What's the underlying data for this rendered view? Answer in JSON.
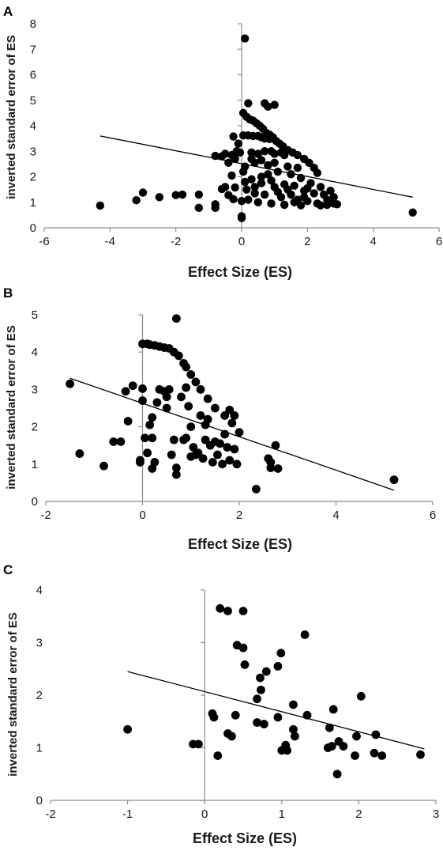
{
  "chart_data": [
    {
      "panel": "A",
      "type": "scatter",
      "xlabel": "Effect Size (ES)",
      "ylabel": "inverted standard error of ES",
      "xlim": [
        -6,
        6
      ],
      "ylim": [
        0,
        8
      ],
      "xticks": [
        -6,
        -4,
        -2,
        0,
        2,
        4,
        6
      ],
      "yticks": [
        0,
        1,
        2,
        3,
        4,
        5,
        6,
        7,
        8
      ],
      "grid": false,
      "trendline": {
        "x": [
          -4.3,
          5.2
        ],
        "y": [
          3.6,
          1.2
        ]
      },
      "points": [
        [
          -4.3,
          0.87
        ],
        [
          -3.2,
          1.08
        ],
        [
          -3.0,
          1.38
        ],
        [
          -2.5,
          1.2
        ],
        [
          -2.0,
          1.28
        ],
        [
          -1.8,
          1.3
        ],
        [
          -1.3,
          0.78
        ],
        [
          -1.3,
          1.3
        ],
        [
          -0.8,
          0.78
        ],
        [
          -0.8,
          0.92
        ],
        [
          -0.4,
          1.28
        ],
        [
          -0.25,
          1.12
        ],
        [
          0.0,
          0.38
        ],
        [
          0.0,
          0.45
        ],
        [
          -0.2,
          1.58
        ],
        [
          -0.5,
          1.6
        ],
        [
          -0.6,
          1.52
        ],
        [
          -0.3,
          2.05
        ],
        [
          -0.4,
          2.55
        ],
        [
          -0.2,
          2.7
        ],
        [
          0.1,
          7.42
        ],
        [
          0.2,
          4.88
        ],
        [
          0.7,
          4.88
        ],
        [
          0.8,
          4.75
        ],
        [
          1.0,
          4.82
        ],
        [
          0.05,
          4.5
        ],
        [
          0.15,
          4.35
        ],
        [
          0.25,
          4.25
        ],
        [
          0.35,
          4.2
        ],
        [
          0.45,
          4.1
        ],
        [
          0.55,
          4.0
        ],
        [
          0.65,
          3.88
        ],
        [
          0.75,
          3.72
        ],
        [
          0.85,
          3.65
        ],
        [
          0.95,
          3.55
        ],
        [
          1.05,
          3.4
        ],
        [
          1.15,
          3.3
        ],
        [
          1.25,
          3.2
        ],
        [
          1.4,
          3.05
        ],
        [
          1.55,
          2.95
        ],
        [
          1.7,
          2.85
        ],
        [
          1.9,
          2.7
        ],
        [
          2.05,
          2.55
        ],
        [
          2.2,
          2.35
        ],
        [
          -0.15,
          3.0
        ],
        [
          0.05,
          3.62
        ],
        [
          0.2,
          3.62
        ],
        [
          0.35,
          3.6
        ],
        [
          0.5,
          3.6
        ],
        [
          0.6,
          3.55
        ],
        [
          0.7,
          3.5
        ],
        [
          0.85,
          3.48
        ],
        [
          -0.25,
          3.58
        ],
        [
          -0.05,
          2.95
        ],
        [
          0.3,
          2.95
        ],
        [
          0.5,
          2.9
        ],
        [
          0.7,
          3.0
        ],
        [
          0.9,
          3.0
        ],
        [
          1.0,
          2.9
        ],
        [
          1.2,
          2.95
        ],
        [
          1.3,
          2.85
        ],
        [
          -0.1,
          3.3
        ],
        [
          -0.8,
          2.82
        ],
        [
          -0.5,
          2.9
        ],
        [
          -0.3,
          2.85
        ],
        [
          -0.6,
          2.8
        ],
        [
          0.1,
          2.4
        ],
        [
          0.4,
          2.55
        ],
        [
          0.8,
          2.45
        ],
        [
          1.1,
          2.2
        ],
        [
          1.5,
          2.1
        ],
        [
          1.8,
          1.95
        ],
        [
          2.1,
          1.75
        ],
        [
          2.4,
          1.6
        ],
        [
          0.05,
          2.2
        ],
        [
          0.3,
          1.9
        ],
        [
          0.6,
          1.75
        ],
        [
          1.0,
          1.6
        ],
        [
          1.4,
          1.5
        ],
        [
          1.9,
          1.45
        ],
        [
          2.2,
          1.35
        ],
        [
          2.5,
          1.3
        ],
        [
          2.7,
          1.45
        ],
        [
          2.8,
          1.2
        ],
        [
          0.15,
          1.5
        ],
        [
          0.4,
          1.35
        ],
        [
          0.7,
          1.3
        ],
        [
          1.2,
          1.2
        ],
        [
          1.7,
          1.1
        ],
        [
          2.0,
          1.05
        ],
        [
          2.3,
          0.95
        ],
        [
          2.6,
          0.9
        ],
        [
          2.8,
          0.95
        ],
        [
          2.9,
          0.92
        ],
        [
          0.2,
          1.1
        ],
        [
          0.5,
          1.0
        ],
        [
          0.9,
          0.95
        ],
        [
          1.3,
          0.9
        ],
        [
          1.6,
          1.0
        ],
        [
          1.8,
          0.88
        ],
        [
          2.4,
          0.88
        ],
        [
          0.6,
          2.0
        ],
        [
          0.9,
          1.85
        ],
        [
          1.3,
          1.7
        ],
        [
          1.6,
          1.65
        ],
        [
          2.0,
          1.55
        ],
        [
          0.3,
          2.7
        ],
        [
          0.6,
          2.65
        ],
        [
          1.0,
          2.55
        ],
        [
          1.4,
          2.4
        ],
        [
          1.7,
          2.35
        ],
        [
          2.3,
          2.15
        ],
        [
          0.1,
          1.8
        ],
        [
          0.8,
          2.1
        ],
        [
          1.5,
          1.3
        ],
        [
          1.1,
          1.4
        ],
        [
          0.4,
          1.6
        ],
        [
          1.9,
          1.2
        ],
        [
          2.6,
          1.1
        ],
        [
          0.0,
          1.05
        ],
        [
          5.2,
          0.6
        ]
      ]
    },
    {
      "panel": "B",
      "type": "scatter",
      "xlabel": "Effect Size (ES)",
      "ylabel": "inverted standard error of ES",
      "xlim": [
        -2,
        6
      ],
      "ylim": [
        0,
        5
      ],
      "xticks": [
        -2,
        0,
        2,
        4,
        6
      ],
      "yticks": [
        0,
        1,
        2,
        3,
        4,
        5
      ],
      "grid": false,
      "trendline": {
        "x": [
          -1.5,
          5.2
        ],
        "y": [
          3.3,
          0.3
        ]
      },
      "points": [
        [
          -1.5,
          3.15
        ],
        [
          -1.3,
          1.28
        ],
        [
          -0.8,
          0.95
        ],
        [
          -0.6,
          1.6
        ],
        [
          -0.45,
          1.6
        ],
        [
          -0.35,
          2.95
        ],
        [
          -0.3,
          2.15
        ],
        [
          -0.2,
          3.1
        ],
        [
          -0.05,
          1.05
        ],
        [
          -0.05,
          1.1
        ],
        [
          0.0,
          2.7
        ],
        [
          0.0,
          3.02
        ],
        [
          0.0,
          4.22
        ],
        [
          0.1,
          4.22
        ],
        [
          0.15,
          4.2
        ],
        [
          0.25,
          4.18
        ],
        [
          0.35,
          4.15
        ],
        [
          0.45,
          4.12
        ],
        [
          0.55,
          4.1
        ],
        [
          0.65,
          4.0
        ],
        [
          0.7,
          4.9
        ],
        [
          0.75,
          3.9
        ],
        [
          0.85,
          3.7
        ],
        [
          0.9,
          3.6
        ],
        [
          1.0,
          3.4
        ],
        [
          1.1,
          3.2
        ],
        [
          1.2,
          3.0
        ],
        [
          1.35,
          2.75
        ],
        [
          1.5,
          2.5
        ],
        [
          1.7,
          2.3
        ],
        [
          1.8,
          2.45
        ],
        [
          1.9,
          2.3
        ],
        [
          2.0,
          1.85
        ],
        [
          0.05,
          1.7
        ],
        [
          0.1,
          1.3
        ],
        [
          0.15,
          2.05
        ],
        [
          0.2,
          2.25
        ],
        [
          0.2,
          0.88
        ],
        [
          0.25,
          1.05
        ],
        [
          0.3,
          2.65
        ],
        [
          0.35,
          3.0
        ],
        [
          0.45,
          2.95
        ],
        [
          0.5,
          2.8
        ],
        [
          0.55,
          3.0
        ],
        [
          0.6,
          1.25
        ],
        [
          0.65,
          1.65
        ],
        [
          0.7,
          0.9
        ],
        [
          0.7,
          0.72
        ],
        [
          0.8,
          2.8
        ],
        [
          0.85,
          1.65
        ],
        [
          0.9,
          3.05
        ],
        [
          0.95,
          2.55
        ],
        [
          1.0,
          2.0
        ],
        [
          1.05,
          1.45
        ],
        [
          1.1,
          1.25
        ],
        [
          1.15,
          1.3
        ],
        [
          1.2,
          2.3
        ],
        [
          1.25,
          1.15
        ],
        [
          1.3,
          1.65
        ],
        [
          1.35,
          2.2
        ],
        [
          1.4,
          1.5
        ],
        [
          1.45,
          1.05
        ],
        [
          1.5,
          1.6
        ],
        [
          1.55,
          1.25
        ],
        [
          1.6,
          1.55
        ],
        [
          1.65,
          1.0
        ],
        [
          1.7,
          1.8
        ],
        [
          1.75,
          1.45
        ],
        [
          1.8,
          1.1
        ],
        [
          1.85,
          2.1
        ],
        [
          1.9,
          1.4
        ],
        [
          1.95,
          1.0
        ],
        [
          0.5,
          2.5
        ],
        [
          0.9,
          1.7
        ],
        [
          1.3,
          2.05
        ],
        [
          0.2,
          1.7
        ],
        [
          1.0,
          1.2
        ],
        [
          2.35,
          0.33
        ],
        [
          2.6,
          1.15
        ],
        [
          2.65,
          0.9
        ],
        [
          2.65,
          1.05
        ],
        [
          2.75,
          1.5
        ],
        [
          2.8,
          0.88
        ],
        [
          5.2,
          0.58
        ]
      ]
    },
    {
      "panel": "C",
      "type": "scatter",
      "xlabel": "Effect Size (ES)",
      "ylabel": "inverted standard error of ES",
      "xlim": [
        -2,
        3
      ],
      "ylim": [
        0,
        4
      ],
      "xticks": [
        -2,
        -1,
        0,
        1,
        2,
        3
      ],
      "yticks": [
        0,
        1,
        2,
        3,
        4
      ],
      "grid": false,
      "trendline": {
        "x": [
          -1.0,
          2.85
        ],
        "y": [
          2.45,
          0.98
        ]
      },
      "points": [
        [
          -1.0,
          1.35
        ],
        [
          -0.15,
          1.07
        ],
        [
          -0.08,
          1.07
        ],
        [
          0.1,
          1.65
        ],
        [
          0.12,
          1.58
        ],
        [
          0.17,
          0.85
        ],
        [
          0.2,
          3.65
        ],
        [
          0.3,
          3.6
        ],
        [
          0.3,
          1.27
        ],
        [
          0.35,
          1.22
        ],
        [
          0.4,
          1.62
        ],
        [
          0.42,
          2.95
        ],
        [
          0.5,
          2.9
        ],
        [
          0.5,
          3.6
        ],
        [
          0.52,
          2.58
        ],
        [
          0.68,
          1.48
        ],
        [
          0.68,
          1.93
        ],
        [
          0.72,
          2.33
        ],
        [
          0.73,
          2.1
        ],
        [
          0.77,
          1.45
        ],
        [
          0.8,
          2.45
        ],
        [
          0.95,
          1.58
        ],
        [
          0.95,
          2.55
        ],
        [
          0.99,
          2.8
        ],
        [
          1.0,
          0.95
        ],
        [
          1.05,
          1.05
        ],
        [
          1.07,
          0.95
        ],
        [
          1.15,
          1.35
        ],
        [
          1.15,
          1.82
        ],
        [
          1.17,
          1.22
        ],
        [
          1.3,
          3.15
        ],
        [
          1.33,
          1.62
        ],
        [
          1.6,
          1.0
        ],
        [
          1.62,
          1.38
        ],
        [
          1.65,
          1.03
        ],
        [
          1.67,
          1.73
        ],
        [
          1.72,
          0.5
        ],
        [
          1.74,
          1.12
        ],
        [
          1.8,
          1.03
        ],
        [
          1.95,
          0.85
        ],
        [
          1.97,
          1.22
        ],
        [
          2.03,
          1.98
        ],
        [
          2.2,
          0.9
        ],
        [
          2.22,
          1.25
        ],
        [
          2.3,
          0.85
        ],
        [
          2.8,
          0.87
        ]
      ]
    }
  ]
}
